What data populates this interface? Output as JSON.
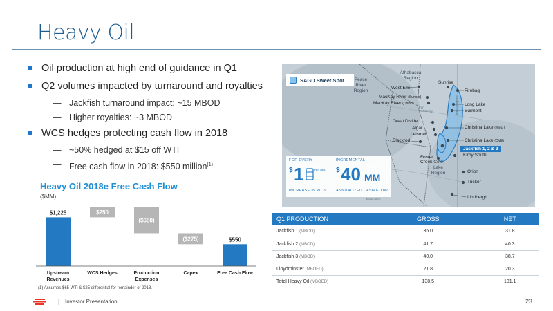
{
  "title": "Heavy Oil",
  "bullets": [
    {
      "text": "Oil production at high end of guidance in Q1",
      "subs": []
    },
    {
      "text": "Q2 volumes impacted by turnaround and royalties",
      "subs": [
        "Jackfish turnaround impact: ~15 MBOD",
        "Higher royalties: ~3 MBOD"
      ]
    },
    {
      "text": "WCS hedges protecting cash flow in 2018",
      "subs": [
        "~50% hedged at $15 off WTI",
        "Free cash flow in 2018: $550 million"
      ],
      "footnote_mark": "(1)"
    }
  ],
  "dash": "—",
  "chart_data": {
    "type": "bar",
    "subtype": "waterfall",
    "title": "Heavy Oil 2018e Free Cash Flow",
    "ylabel": "($MM)",
    "categories": [
      "Upstream Revenues",
      "WCS Hedges",
      "Production Expenses",
      "Capex",
      "Free Cash Flow"
    ],
    "category_lines": [
      [
        "Upstream",
        "Revenues"
      ],
      [
        "WCS Hedges"
      ],
      [
        "Production",
        "Expenses"
      ],
      [
        "Capex"
      ],
      [
        "Free Cash Flow"
      ]
    ],
    "values": [
      1225,
      250,
      -650,
      -275,
      550
    ],
    "value_labels": [
      "$1,225",
      "$250",
      "($650)",
      "($275)",
      "$550"
    ],
    "kinds": [
      "total",
      "increase",
      "decrease",
      "decrease",
      "total"
    ],
    "colors": {
      "total": "#2379c2",
      "change": "#b6b6b6"
    }
  },
  "chart_footnote": "(1) Assumes $65 WTI & $25 differential for remainder of 2018.",
  "map": {
    "legend": "SAGD Sweet Spot",
    "stat1": {
      "top": "FOR EVERY",
      "dollar": "$",
      "big": "1",
      "per": "PER BBL",
      "bottom": "INCREASE IN WCS"
    },
    "stat2": {
      "top": "INCREMENTAL",
      "dollar": "$",
      "big": "40",
      "unit": "MM",
      "bottom": "ANNUALIZED CASH FLOW"
    },
    "jackfish_tag": "Jackfish 1, 2 & 3",
    "regions": [
      "Athabasca Region",
      "Peace River Region",
      "Cold Lake Region"
    ],
    "labels": [
      "West Ells",
      "Sunrise",
      "Firebag",
      "MacKay River",
      "(Suncor)",
      "MacKay River",
      "(Union)",
      "Long Lake",
      "Surmont",
      "Great Divide",
      "Algar",
      "Leismer",
      "Blackrod",
      "Christina Lake",
      "(MEG)",
      "Christina Lake",
      "(CVE)",
      "Kirby South",
      "Foster Creek",
      "Orion",
      "Tucker",
      "Lindbergh",
      "Edmonton",
      "Fort McMurray",
      "Saskatchewan"
    ]
  },
  "table": {
    "headers": [
      "Q1 PRODUCTION",
      "GROSS",
      "NET"
    ],
    "rows": [
      {
        "name": "Jackfish 1",
        "unit": "(MBOD)",
        "gross": "35.0",
        "net": "31.8"
      },
      {
        "name": "Jackfish 2",
        "unit": "(MBOD)",
        "gross": "41.7",
        "net": "40.3"
      },
      {
        "name": "Jackfish 3",
        "unit": "(MBOD)",
        "gross": "40.0",
        "net": "38.7"
      },
      {
        "name": "Lloydminster",
        "unit": "(MBOED)",
        "gross": "21.8",
        "net": "20.3"
      }
    ],
    "total": {
      "name": "Total Heavy Oil",
      "unit": "(MBOED)",
      "gross": "138.5",
      "net": "131.1"
    }
  },
  "footer": {
    "separator": "|",
    "text": "Investor Presentation",
    "page": "23"
  },
  "colors": {
    "accent": "#2379c2",
    "title": "#1d5c8f",
    "logo": "#e8362b"
  }
}
